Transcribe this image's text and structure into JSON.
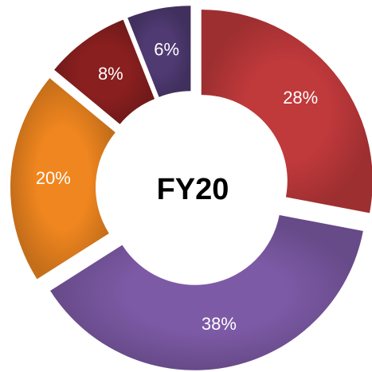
{
  "chart_data": {
    "type": "donut",
    "center_label": "FY20",
    "values": [
      28,
      38,
      20,
      8,
      6
    ],
    "value_labels": [
      "28%",
      "38%",
      "20%",
      "8%",
      "6%"
    ],
    "colors": [
      "#c0393b",
      "#7d5aa6",
      "#f0861f",
      "#8a1f1f",
      "#4f3a72"
    ]
  }
}
